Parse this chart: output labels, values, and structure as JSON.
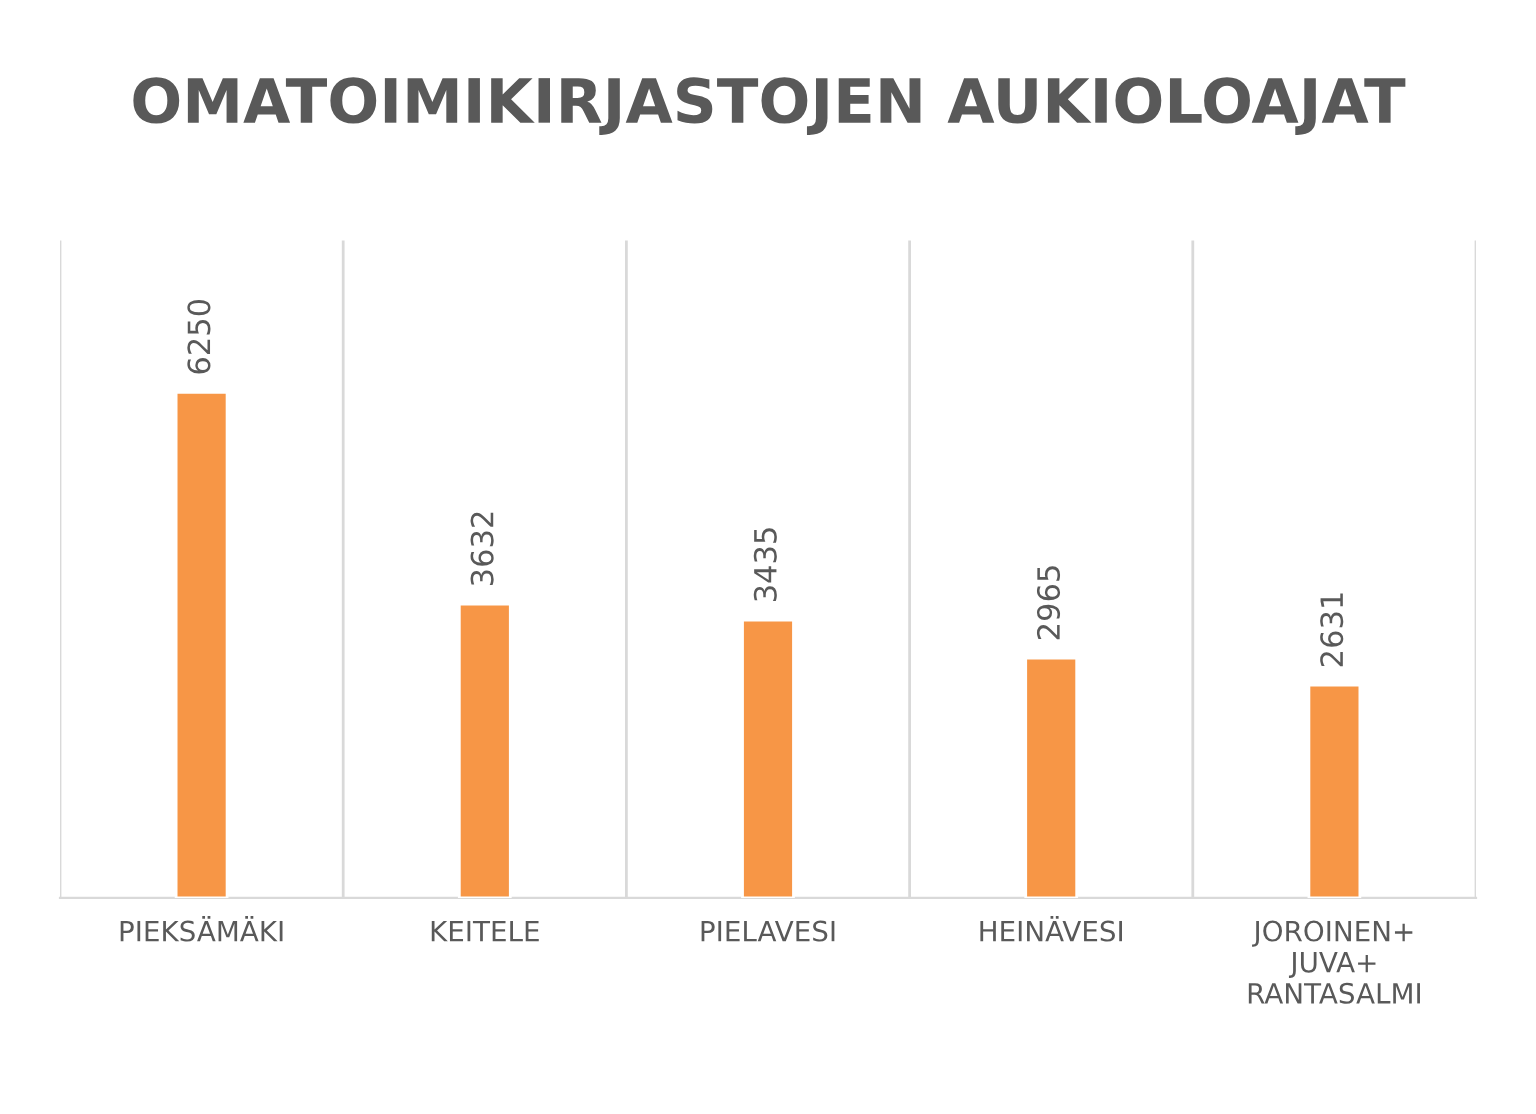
{
  "chart_data": {
    "type": "bar",
    "title": "OMATOIMIKIRJASTOJEN AUKIOLOAJAT",
    "categories": [
      "PIEKSÄMÄKI",
      "KEITELE",
      "PIELAVESI",
      "HEINÄVESI",
      "JOROINEN+\nJUVA+\nRANTASALMI"
    ],
    "values": [
      6250,
      3632,
      3435,
      2965,
      2631
    ],
    "color": "#f79646",
    "data_labels": true,
    "grid": "x",
    "legend": false
  }
}
